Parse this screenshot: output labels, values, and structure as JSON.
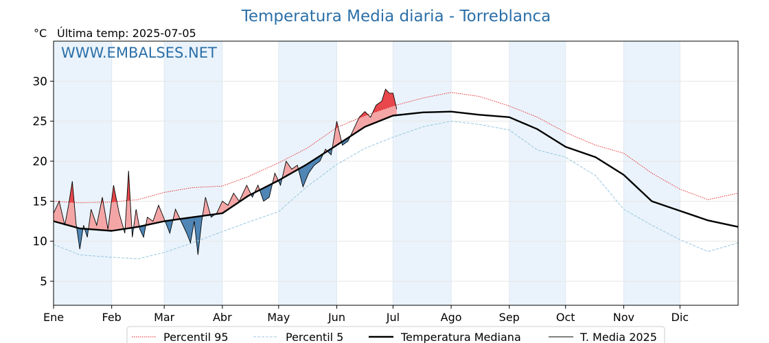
{
  "chart_data": {
    "type": "line",
    "title": "Temperatura Media diaria - Torreblanca",
    "ylabel": "°C",
    "subtitle": "Última temp: 2025-07-05",
    "watermark": "WWW.EMBALSES.NET",
    "ylim": [
      2,
      35
    ],
    "xlim": [
      1,
      366
    ],
    "yticks": [
      5,
      10,
      15,
      20,
      25,
      30
    ],
    "months": [
      "Ene",
      "Feb",
      "Mar",
      "Abr",
      "May",
      "Jun",
      "Jul",
      "Ago",
      "Sep",
      "Oct",
      "Nov",
      "Dic"
    ],
    "month_start_days": [
      1,
      32,
      60,
      91,
      121,
      152,
      182,
      213,
      244,
      274,
      305,
      335
    ],
    "grid": true,
    "legend_position": "bottom",
    "colors": {
      "p95": "#e41a1c",
      "p5": "#9ecae1",
      "median": "#000000",
      "current": "#000000",
      "above_fill": "#f4a6a6",
      "above_p95_fill": "#e8474b",
      "below_fill": "#4f86b5",
      "title": "#2b6fa8",
      "band": "#eaf3fb"
    },
    "series": [
      {
        "name": "Percentil 95",
        "style": "dotted",
        "x": [
          1,
          15,
          32,
          46,
          60,
          75,
          91,
          105,
          121,
          136,
          152,
          167,
          182,
          198,
          213,
          228,
          244,
          259,
          274,
          290,
          305,
          320,
          335,
          350,
          366
        ],
        "values": [
          15.0,
          14.8,
          14.9,
          15.2,
          16.1,
          16.7,
          16.9,
          18.1,
          19.8,
          21.6,
          24.2,
          25.7,
          26.9,
          27.9,
          28.6,
          28.1,
          26.9,
          25.5,
          23.6,
          22.0,
          21.0,
          18.5,
          16.5,
          15.2,
          16.0
        ]
      },
      {
        "name": "Percentil 5",
        "style": "dashed",
        "x": [
          1,
          15,
          32,
          46,
          60,
          75,
          91,
          105,
          121,
          136,
          152,
          167,
          182,
          198,
          213,
          228,
          244,
          259,
          274,
          290,
          305,
          320,
          335,
          350,
          366
        ],
        "values": [
          9.6,
          8.3,
          8.0,
          7.8,
          8.6,
          9.8,
          11.2,
          12.4,
          13.7,
          16.8,
          19.6,
          21.6,
          23.0,
          24.3,
          25.0,
          24.6,
          23.9,
          21.4,
          20.5,
          18.2,
          14.0,
          12.0,
          10.2,
          8.7,
          9.8
        ]
      },
      {
        "name": "Temperatura Mediana",
        "style": "solid-thick",
        "x": [
          1,
          15,
          32,
          46,
          60,
          75,
          91,
          105,
          121,
          136,
          152,
          167,
          182,
          198,
          213,
          228,
          244,
          259,
          274,
          290,
          305,
          320,
          335,
          350,
          366
        ],
        "values": [
          12.5,
          11.6,
          11.3,
          11.8,
          12.5,
          13.0,
          13.5,
          15.7,
          17.6,
          19.6,
          22.0,
          24.3,
          25.7,
          26.1,
          26.2,
          25.8,
          25.5,
          24.0,
          21.8,
          20.5,
          18.3,
          15.0,
          13.8,
          12.6,
          11.8
        ]
      },
      {
        "name": "T. Media 2025",
        "style": "solid-thin",
        "x": [
          1,
          4,
          7,
          9,
          11,
          13,
          15,
          17,
          19,
          21,
          24,
          27,
          30,
          33,
          36,
          39,
          41,
          43,
          45,
          47,
          49,
          51,
          54,
          57,
          60,
          63,
          66,
          69,
          72,
          74,
          76,
          78,
          80,
          82,
          85,
          88,
          91,
          94,
          97,
          100,
          104,
          107,
          110,
          113,
          116,
          119,
          122,
          125,
          128,
          131,
          134,
          137,
          140,
          143,
          146,
          149,
          152,
          155,
          158,
          161,
          164,
          167,
          170,
          173,
          176,
          178,
          180,
          182,
          184
        ],
        "values": [
          13.5,
          15.0,
          12.0,
          14.5,
          17.5,
          12.2,
          9.0,
          12.0,
          10.5,
          14.0,
          12.0,
          15.5,
          11.5,
          17.0,
          13.5,
          11.0,
          18.8,
          10.5,
          14.0,
          11.5,
          10.5,
          13.0,
          12.5,
          14.5,
          12.8,
          11.0,
          14.0,
          12.5,
          11.0,
          9.8,
          12.5,
          8.3,
          12.5,
          15.5,
          13.0,
          13.5,
          15.0,
          14.5,
          16.0,
          15.0,
          17.0,
          15.5,
          17.0,
          15.0,
          15.5,
          18.5,
          17.0,
          20.0,
          19.0,
          19.5,
          16.8,
          18.5,
          19.5,
          20.0,
          21.5,
          20.8,
          25.0,
          22.0,
          22.5,
          24.0,
          25.5,
          26.2,
          25.5,
          27.0,
          27.5,
          29.0,
          28.5,
          28.5,
          26.5
        ]
      }
    ]
  }
}
